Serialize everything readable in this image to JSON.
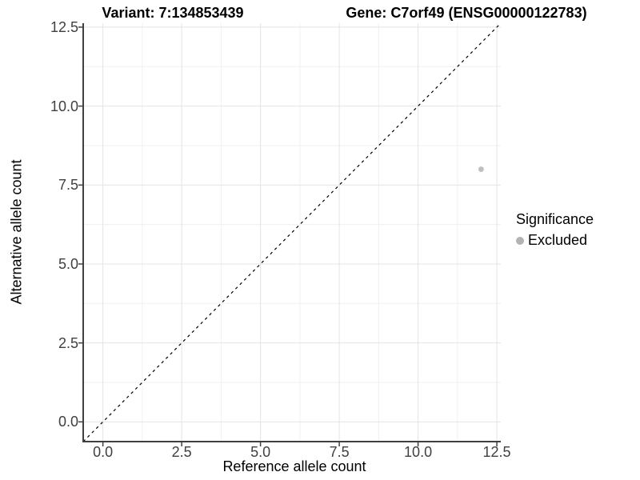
{
  "header": {
    "variant_title": "Variant: 7:134853439",
    "gene_title": "Gene: C7orf49 (ENSG00000122783)"
  },
  "chart_data": {
    "type": "scatter",
    "xlabel": "Reference allele count",
    "ylabel": "Alternative allele count",
    "xlim": [
      -0.625,
      12.625
    ],
    "ylim": [
      -0.625,
      12.625
    ],
    "x_tick_labels": [
      "0.0",
      "2.5",
      "5.0",
      "7.5",
      "10.0",
      "12.5"
    ],
    "x_tick_values": [
      0,
      2.5,
      5,
      7.5,
      10,
      12.5
    ],
    "y_tick_labels": [
      "0.0",
      "2.5",
      "5.0",
      "7.5",
      "10.0",
      "12.5"
    ],
    "y_tick_values": [
      0,
      2.5,
      5,
      7.5,
      10,
      12.5
    ],
    "minor_tick_values": [
      1.25,
      3.75,
      6.25,
      8.75,
      11.25
    ],
    "grid": "major+minor",
    "identity_line": {
      "from": [
        -0.625,
        -0.625
      ],
      "to": [
        12.625,
        12.625
      ],
      "style": "dashed",
      "color": "#000000"
    },
    "series": [
      {
        "name": "Excluded",
        "color": "#bfbfbf",
        "points": [
          {
            "x": 12,
            "y": 8
          }
        ]
      }
    ],
    "legend": {
      "title": "Significance",
      "position": "right",
      "items": [
        {
          "label": "Excluded",
          "color": "#b3b3b3"
        }
      ]
    }
  },
  "colors": {
    "background": "#ffffff",
    "grid_major": "#e4e4e4",
    "grid_minor": "#f0f0f0",
    "axis_line": "#404040",
    "tick_mark": "#404040",
    "tick_label": "#404040",
    "text": "#000000"
  }
}
